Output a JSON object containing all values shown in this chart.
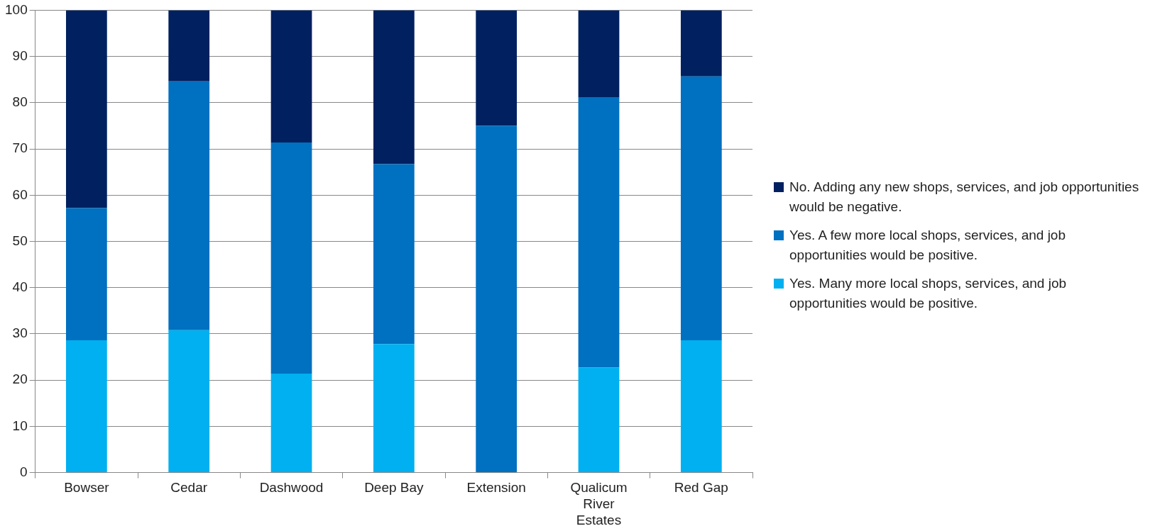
{
  "chart_data": {
    "type": "bar",
    "stacked": true,
    "categories": [
      "Bowser",
      "Cedar",
      "Dashwood",
      "Deep Bay",
      "Extension",
      "Qualicum River Estates",
      "Red Gap"
    ],
    "series": [
      {
        "name": "Yes. Many more local shops, services, and job opportunities would be positive.",
        "color": "#00b0f0",
        "values": [
          28.6,
          30.8,
          21.4,
          27.8,
          0,
          22.7,
          28.6
        ]
      },
      {
        "name": "Yes. A few more local shops, services, and job opportunities would be positive.",
        "color": "#0070c0",
        "values": [
          28.6,
          53.8,
          50,
          38.9,
          75,
          58.4,
          57.1
        ]
      },
      {
        "name": "No. Adding any new shops, services, and job opportunities would be negative.",
        "color": "#002060",
        "values": [
          42.8,
          15.4,
          28.6,
          33.3,
          25,
          18.9,
          14.3
        ]
      }
    ],
    "ylim": [
      0,
      100
    ],
    "yticks": [
      0,
      10,
      20,
      30,
      40,
      50,
      60,
      70,
      80,
      90,
      100
    ],
    "grid": "y",
    "legend": "right"
  }
}
